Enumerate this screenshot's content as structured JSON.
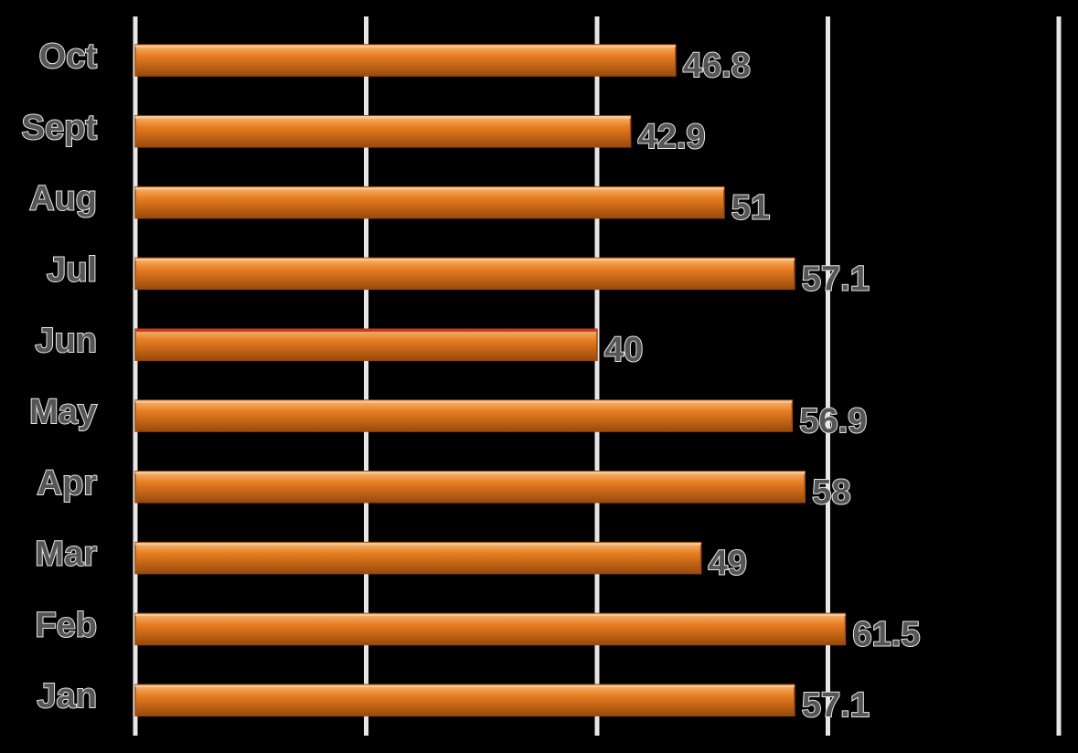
{
  "chart_data": {
    "type": "bar",
    "orientation": "horizontal",
    "categories": [
      "Jan",
      "Feb",
      "Mar",
      "Apr",
      "May",
      "Jun",
      "Jul",
      "Aug",
      "Sept",
      "Oct"
    ],
    "values": [
      57.1,
      61.5,
      49,
      58,
      56.9,
      40,
      57.1,
      51,
      42.9,
      46.8
    ],
    "labels": [
      "57.1",
      "61.5",
      "49",
      "58",
      "56.9",
      "40",
      "57.1",
      "51",
      "42.9",
      "46.8"
    ],
    "title": "",
    "xlabel": "",
    "ylabel": "",
    "xlim": [
      0,
      80
    ],
    "grid": true,
    "legend": "none",
    "bar_color": "#e87e22",
    "bar_highlight": "#f6b977",
    "bar_shadow": "#9a4a0a",
    "label_color": "#555555",
    "grid_color": "#e6e6e6",
    "background": "#000000"
  }
}
